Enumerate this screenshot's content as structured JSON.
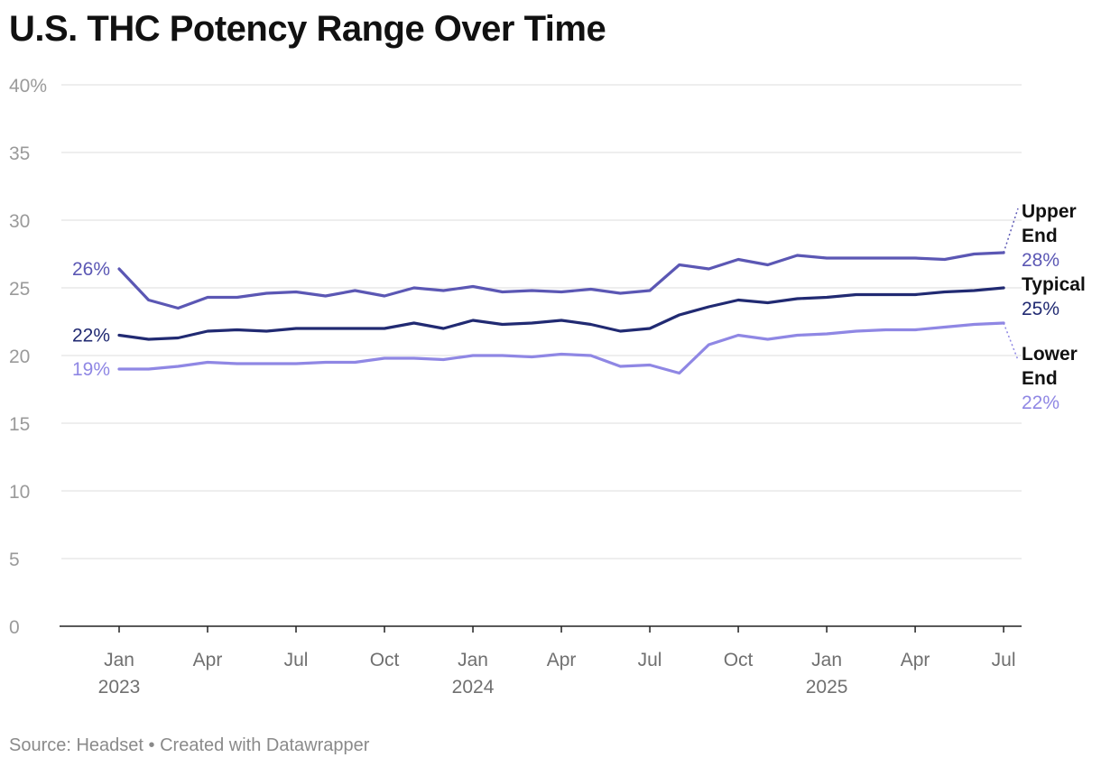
{
  "chart_data": {
    "type": "line",
    "title": "U.S. THC Potency Range Over Time",
    "footer": "Source: Headset • Created with Datawrapper",
    "ylim": [
      0,
      40
    ],
    "y_ticks": [
      {
        "value": 0,
        "label": "0"
      },
      {
        "value": 5,
        "label": "5"
      },
      {
        "value": 10,
        "label": "10"
      },
      {
        "value": 15,
        "label": "15"
      },
      {
        "value": 20,
        "label": "20"
      },
      {
        "value": 25,
        "label": "25"
      },
      {
        "value": 30,
        "label": "30"
      },
      {
        "value": 35,
        "label": "35"
      },
      {
        "value": 40,
        "label": "40%"
      }
    ],
    "grid": true,
    "x_ticks": [
      {
        "date": "2023-01",
        "month": "Jan",
        "year": "2023"
      },
      {
        "date": "2023-04",
        "month": "Apr",
        "year": ""
      },
      {
        "date": "2023-07",
        "month": "Jul",
        "year": ""
      },
      {
        "date": "2023-10",
        "month": "Oct",
        "year": ""
      },
      {
        "date": "2024-01",
        "month": "Jan",
        "year": "2024"
      },
      {
        "date": "2024-04",
        "month": "Apr",
        "year": ""
      },
      {
        "date": "2024-07",
        "month": "Jul",
        "year": ""
      },
      {
        "date": "2024-10",
        "month": "Oct",
        "year": ""
      },
      {
        "date": "2025-01",
        "month": "Jan",
        "year": "2025"
      },
      {
        "date": "2025-04",
        "month": "Apr",
        "year": ""
      },
      {
        "date": "2025-07",
        "month": "Jul",
        "year": ""
      }
    ],
    "x": [
      "2023-01",
      "2023-02",
      "2023-03",
      "2023-04",
      "2023-05",
      "2023-06",
      "2023-07",
      "2023-08",
      "2023-09",
      "2023-10",
      "2023-11",
      "2023-12",
      "2024-01",
      "2024-02",
      "2024-03",
      "2024-04",
      "2024-05",
      "2024-06",
      "2024-07",
      "2024-08",
      "2024-09",
      "2024-10",
      "2024-11",
      "2024-12",
      "2025-01",
      "2025-02",
      "2025-03",
      "2025-04",
      "2025-05",
      "2025-06",
      "2025-07"
    ],
    "series": [
      {
        "name": "Upper End",
        "name_lines": [
          "Upper",
          "End"
        ],
        "color": "#5b57b4",
        "start_label": "26%",
        "end_label": "28%",
        "values": [
          26.4,
          24.1,
          23.5,
          24.3,
          24.3,
          24.6,
          24.7,
          24.4,
          24.8,
          24.4,
          25.0,
          24.8,
          25.1,
          24.7,
          24.8,
          24.7,
          24.9,
          24.6,
          24.8,
          26.7,
          26.4,
          27.1,
          26.7,
          27.4,
          27.2,
          27.2,
          27.2,
          27.2,
          27.1,
          27.5,
          27.6
        ]
      },
      {
        "name": "Typical",
        "name_lines": [
          "Typical"
        ],
        "color": "#212a72",
        "start_label": "22%",
        "end_label": "25%",
        "values": [
          21.5,
          21.2,
          21.3,
          21.8,
          21.9,
          21.8,
          22.0,
          22.0,
          22.0,
          22.0,
          22.4,
          22.0,
          22.6,
          22.3,
          22.4,
          22.6,
          22.3,
          21.8,
          22.0,
          23.0,
          23.6,
          24.1,
          23.9,
          24.2,
          24.3,
          24.5,
          24.5,
          24.5,
          24.7,
          24.8,
          25.0
        ]
      },
      {
        "name": "Lower End",
        "name_lines": [
          "Lower",
          "End"
        ],
        "color": "#8f87e4",
        "start_label": "19%",
        "end_label": "22%",
        "values": [
          19.0,
          19.0,
          19.2,
          19.5,
          19.4,
          19.4,
          19.4,
          19.5,
          19.5,
          19.8,
          19.8,
          19.7,
          20.0,
          20.0,
          19.9,
          20.1,
          20.0,
          19.2,
          19.3,
          18.7,
          20.8,
          21.5,
          21.2,
          21.5,
          21.6,
          21.8,
          21.9,
          21.9,
          22.1,
          22.3,
          22.4
        ]
      }
    ]
  }
}
